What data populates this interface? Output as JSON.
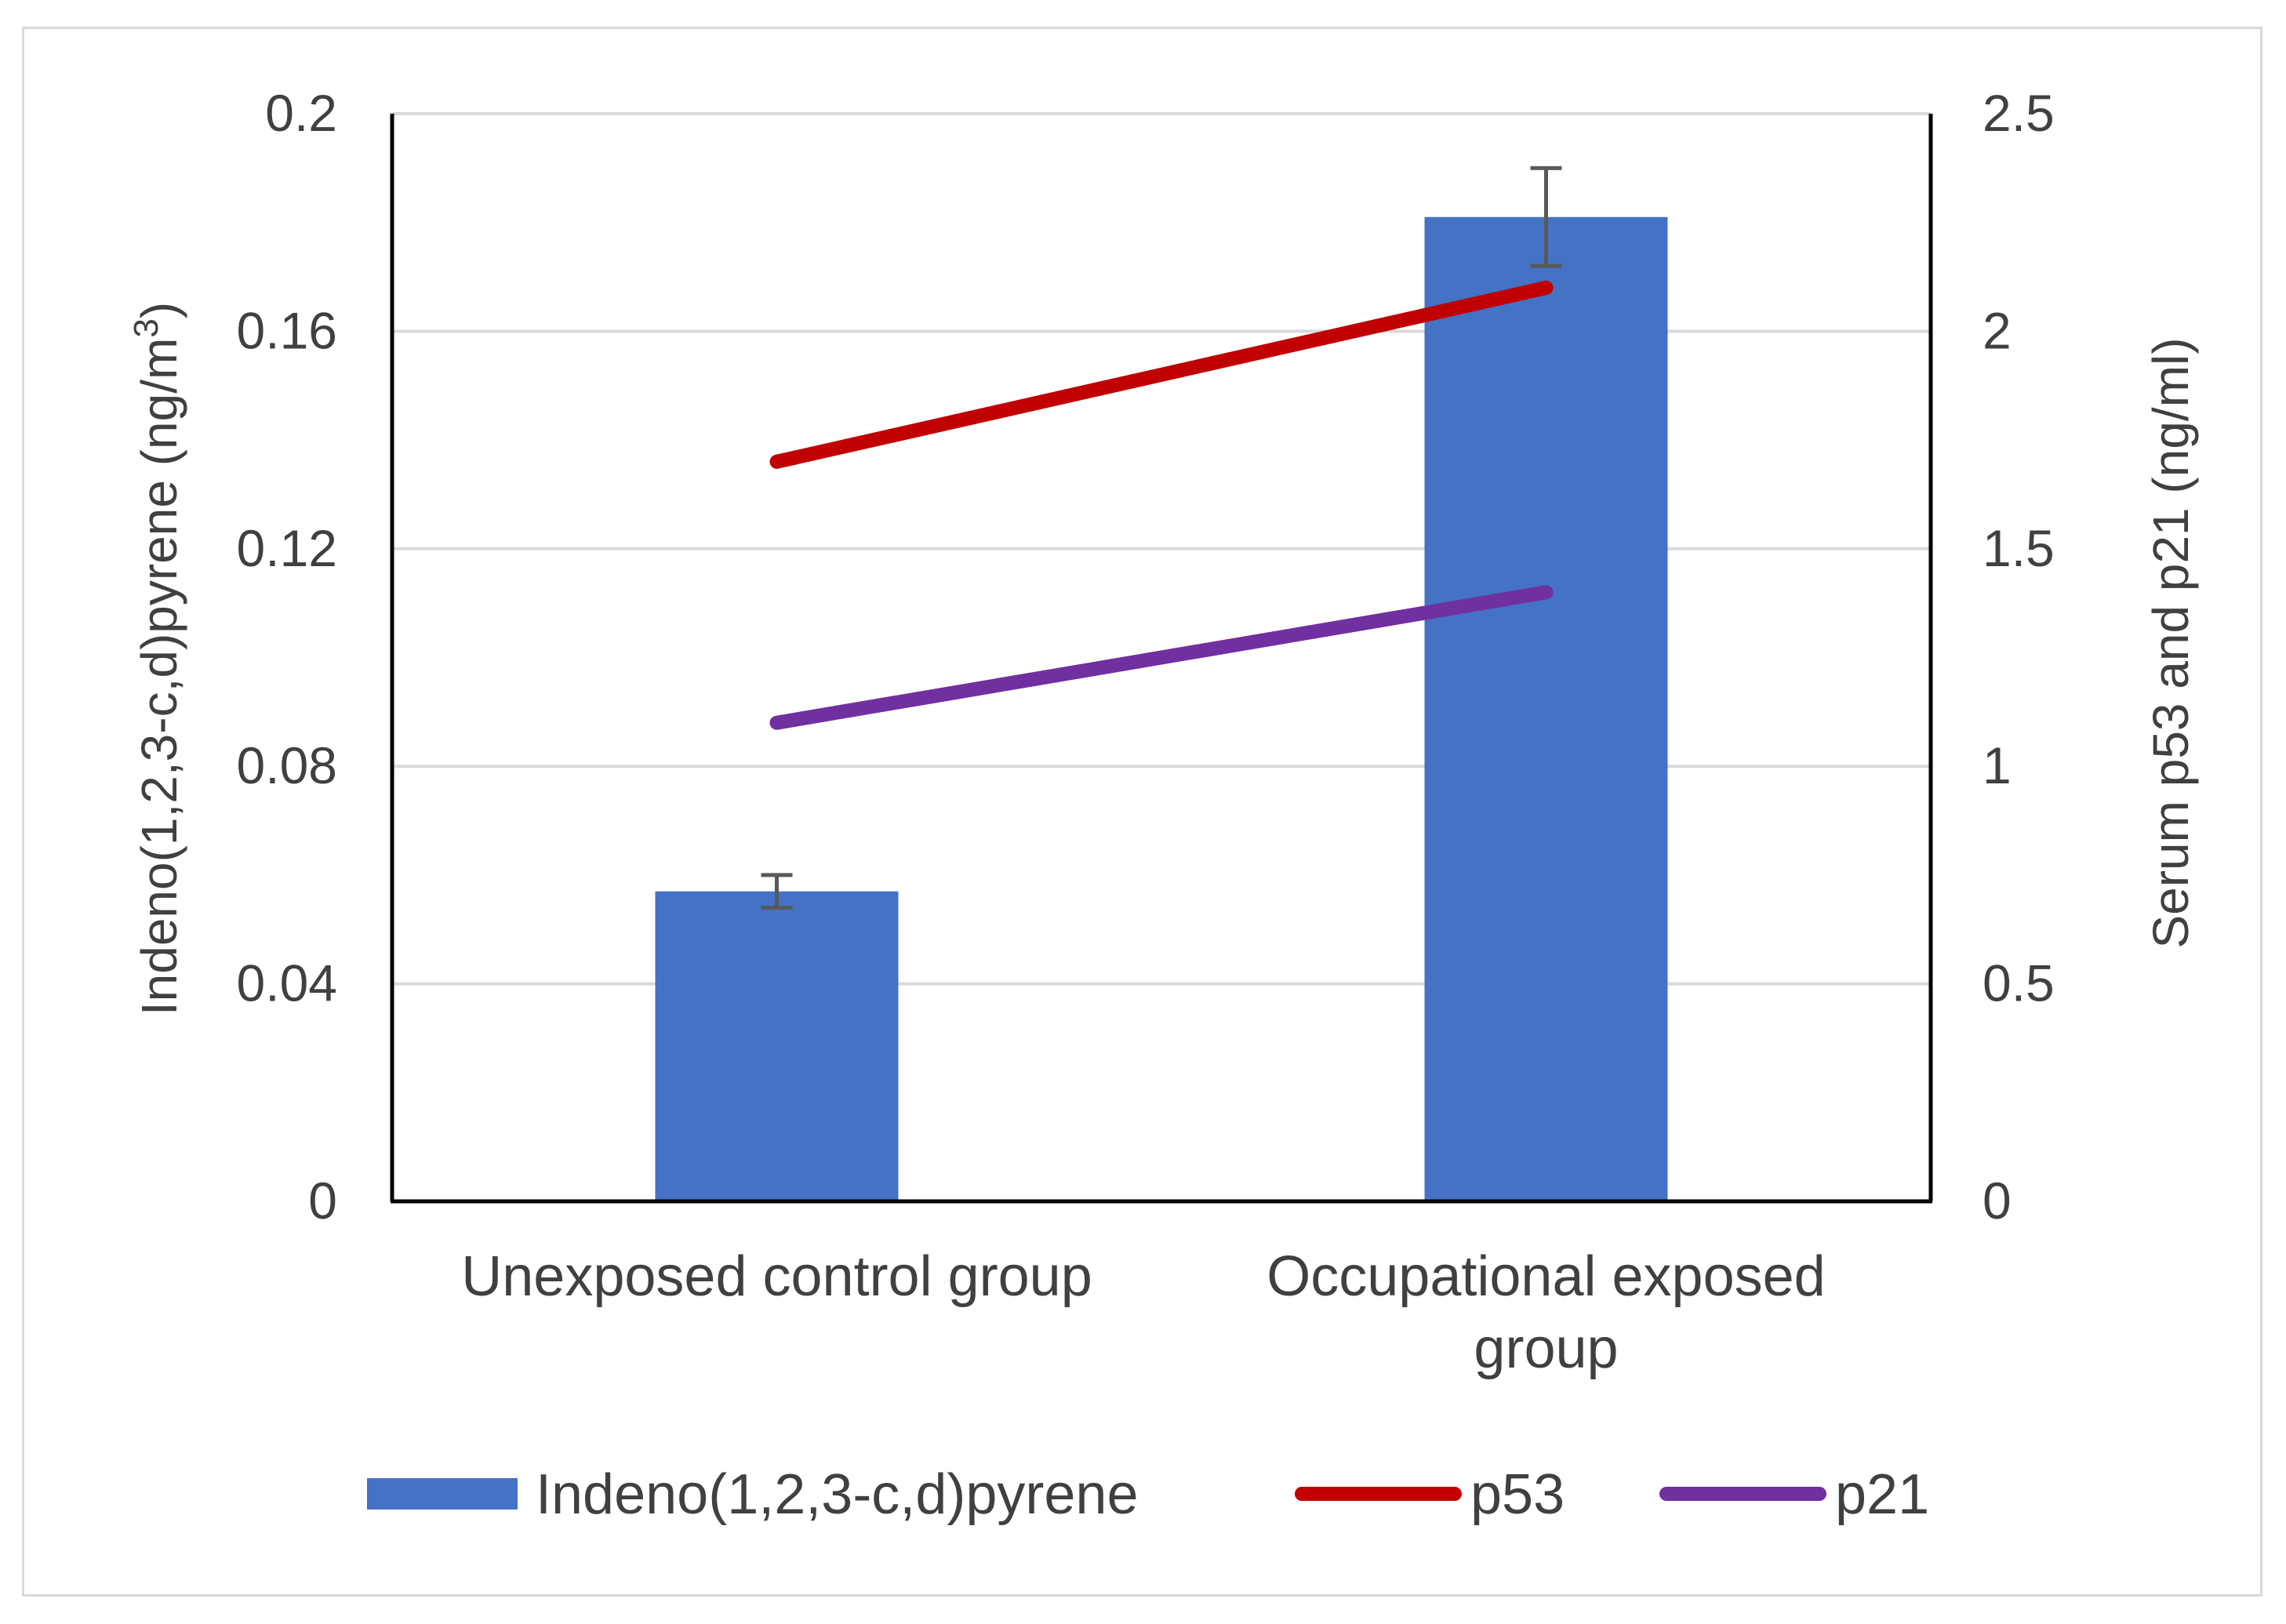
{
  "chart_data": {
    "type": "bar",
    "categories": [
      [
        "Unexposed control group"
      ],
      [
        "Occupational exposed",
        "group"
      ]
    ],
    "y_left": {
      "label": "Indeno(1,2,3-c,d)pyrene (ng/m",
      "label_sup": "3",
      "label_end": ")",
      "ylim": [
        0,
        0.2
      ],
      "ticks": [
        "0",
        "0.04",
        "0.08",
        "0.12",
        "0.16",
        "0.2"
      ]
    },
    "y_right": {
      "label": "Serum p53 and p21 (ng/ml)",
      "ylim": [
        0,
        2.5
      ],
      "ticks": [
        "0",
        "0.5",
        "1",
        "1.5",
        "2",
        "2.5"
      ]
    },
    "series": [
      {
        "name": "Indeno(1,2,3-c,d)pyrene",
        "kind": "bar",
        "axis": "left",
        "color": "#4472c4",
        "values": [
          0.057,
          0.181
        ],
        "error": [
          0.003,
          0.009
        ]
      },
      {
        "name": "p53",
        "kind": "line",
        "axis": "right",
        "color": "#c00000",
        "values": [
          1.7,
          2.1
        ]
      },
      {
        "name": "p21",
        "kind": "line",
        "axis": "right",
        "color": "#7030a0",
        "values": [
          1.1,
          1.4
        ]
      }
    ],
    "grid": true,
    "legend_position": "bottom"
  }
}
